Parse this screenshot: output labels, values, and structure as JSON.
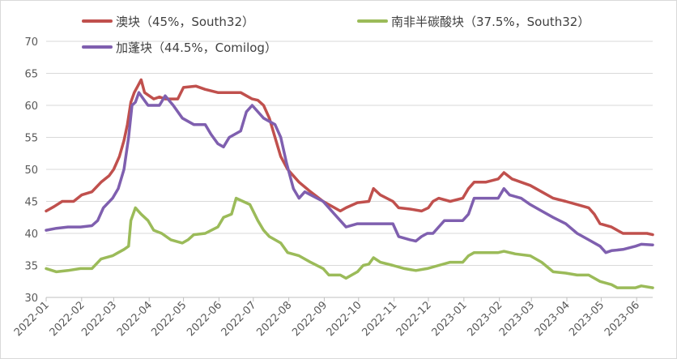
{
  "chart_data": {
    "type": "line",
    "title": "",
    "xlabel": "",
    "ylabel": "",
    "ylim": [
      30,
      70
    ],
    "yticks": [
      30,
      35,
      40,
      45,
      50,
      55,
      60,
      65,
      70
    ],
    "grid": "horizontal",
    "legend_position": "top",
    "x_tick_labels": [
      "2022-01",
      "2022-02",
      "2022-03",
      "2022-04",
      "2022-05",
      "2022-06",
      "2022-07",
      "2022-08",
      "2022-09",
      "2022-10",
      "2022-11",
      "2022-12",
      "2023-01",
      "2023-02",
      "2023-03",
      "2023-04",
      "2023-05",
      "2023-06"
    ],
    "x_range": [
      "2022-01",
      "2023-06-15"
    ],
    "series": [
      {
        "name": "澳块（45%，South32）",
        "color": "#C0504D",
        "points": [
          [
            "2022-01-01",
            43.5
          ],
          [
            "2022-01-08",
            44.2
          ],
          [
            "2022-01-15",
            45.0
          ],
          [
            "2022-01-25",
            45.0
          ],
          [
            "2022-02-01",
            46.0
          ],
          [
            "2022-02-10",
            46.5
          ],
          [
            "2022-02-18",
            48.0
          ],
          [
            "2022-02-25",
            49.0
          ],
          [
            "2022-03-01",
            50.0
          ],
          [
            "2022-03-06",
            52.0
          ],
          [
            "2022-03-10",
            54.5
          ],
          [
            "2022-03-13",
            57.0
          ],
          [
            "2022-03-16",
            60.5
          ],
          [
            "2022-03-19",
            62.0
          ],
          [
            "2022-03-22",
            63.0
          ],
          [
            "2022-03-25",
            64.0
          ],
          [
            "2022-03-28",
            62.0
          ],
          [
            "2022-04-01",
            61.5
          ],
          [
            "2022-04-05",
            61.0
          ],
          [
            "2022-04-10",
            61.3
          ],
          [
            "2022-04-15",
            61.0
          ],
          [
            "2022-04-22",
            61.0
          ],
          [
            "2022-04-26",
            61.0
          ],
          [
            "2022-05-01",
            62.8
          ],
          [
            "2022-05-12",
            63.0
          ],
          [
            "2022-05-20",
            62.5
          ],
          [
            "2022-05-31",
            62.0
          ],
          [
            "2022-06-10",
            62.0
          ],
          [
            "2022-06-20",
            62.0
          ],
          [
            "2022-06-25",
            61.5
          ],
          [
            "2022-06-30",
            61.0
          ],
          [
            "2022-07-05",
            60.8
          ],
          [
            "2022-07-10",
            60.0
          ],
          [
            "2022-07-15",
            58.0
          ],
          [
            "2022-07-20",
            55.0
          ],
          [
            "2022-07-25",
            52.0
          ],
          [
            "2022-07-31",
            50.0
          ],
          [
            "2022-08-05",
            49.0
          ],
          [
            "2022-08-10",
            48.0
          ],
          [
            "2022-08-20",
            46.5
          ],
          [
            "2022-08-31",
            45.0
          ],
          [
            "2022-09-10",
            44.0
          ],
          [
            "2022-09-15",
            43.5
          ],
          [
            "2022-09-20",
            44.0
          ],
          [
            "2022-09-30",
            44.8
          ],
          [
            "2022-10-10",
            45.0
          ],
          [
            "2022-10-14",
            47.0
          ],
          [
            "2022-10-20",
            46.0
          ],
          [
            "2022-10-31",
            45.0
          ],
          [
            "2022-11-05",
            44.0
          ],
          [
            "2022-11-15",
            43.8
          ],
          [
            "2022-11-25",
            43.5
          ],
          [
            "2022-12-01",
            44.0
          ],
          [
            "2022-12-05",
            45.0
          ],
          [
            "2022-12-10",
            45.5
          ],
          [
            "2022-12-20",
            45.0
          ],
          [
            "2022-12-31",
            45.5
          ],
          [
            "2023-01-05",
            47.0
          ],
          [
            "2023-01-10",
            48.0
          ],
          [
            "2023-01-20",
            48.0
          ],
          [
            "2023-01-31",
            48.5
          ],
          [
            "2023-02-05",
            49.5
          ],
          [
            "2023-02-12",
            48.5
          ],
          [
            "2023-02-20",
            48.0
          ],
          [
            "2023-02-28",
            47.5
          ],
          [
            "2023-03-10",
            46.5
          ],
          [
            "2023-03-20",
            45.5
          ],
          [
            "2023-03-31",
            45.0
          ],
          [
            "2023-04-10",
            44.5
          ],
          [
            "2023-04-20",
            44.0
          ],
          [
            "2023-04-25",
            43.0
          ],
          [
            "2023-04-30",
            41.5
          ],
          [
            "2023-05-10",
            41.0
          ],
          [
            "2023-05-15",
            40.5
          ],
          [
            "2023-05-20",
            40.0
          ],
          [
            "2023-05-31",
            40.0
          ],
          [
            "2023-06-10",
            40.0
          ],
          [
            "2023-06-15",
            39.8
          ]
        ]
      },
      {
        "name": "南非半碳酸块（37.5%，South32）",
        "color": "#9BBB59",
        "points": [
          [
            "2022-01-01",
            34.5
          ],
          [
            "2022-01-10",
            34.0
          ],
          [
            "2022-01-20",
            34.2
          ],
          [
            "2022-01-31",
            34.5
          ],
          [
            "2022-02-10",
            34.5
          ],
          [
            "2022-02-18",
            36.0
          ],
          [
            "2022-02-28",
            36.5
          ],
          [
            "2022-03-05",
            37.0
          ],
          [
            "2022-03-10",
            37.5
          ],
          [
            "2022-03-14",
            38.0
          ],
          [
            "2022-03-16",
            42.0
          ],
          [
            "2022-03-20",
            44.0
          ],
          [
            "2022-03-25",
            43.0
          ],
          [
            "2022-03-31",
            42.0
          ],
          [
            "2022-04-05",
            40.5
          ],
          [
            "2022-04-12",
            40.0
          ],
          [
            "2022-04-20",
            39.0
          ],
          [
            "2022-04-30",
            38.5
          ],
          [
            "2022-05-05",
            39.0
          ],
          [
            "2022-05-10",
            39.8
          ],
          [
            "2022-05-20",
            40.0
          ],
          [
            "2022-05-31",
            41.0
          ],
          [
            "2022-06-05",
            42.5
          ],
          [
            "2022-06-12",
            43.0
          ],
          [
            "2022-06-16",
            45.5
          ],
          [
            "2022-06-22",
            45.0
          ],
          [
            "2022-06-28",
            44.5
          ],
          [
            "2022-07-05",
            42.0
          ],
          [
            "2022-07-10",
            40.5
          ],
          [
            "2022-07-15",
            39.5
          ],
          [
            "2022-07-25",
            38.5
          ],
          [
            "2022-07-31",
            37.0
          ],
          [
            "2022-08-10",
            36.5
          ],
          [
            "2022-08-20",
            35.5
          ],
          [
            "2022-08-31",
            34.5
          ],
          [
            "2022-09-05",
            33.5
          ],
          [
            "2022-09-15",
            33.5
          ],
          [
            "2022-09-20",
            33.0
          ],
          [
            "2022-09-30",
            34.0
          ],
          [
            "2022-10-05",
            35.0
          ],
          [
            "2022-10-10",
            35.2
          ],
          [
            "2022-10-14",
            36.2
          ],
          [
            "2022-10-20",
            35.5
          ],
          [
            "2022-10-31",
            35.0
          ],
          [
            "2022-11-10",
            34.5
          ],
          [
            "2022-11-20",
            34.2
          ],
          [
            "2022-11-30",
            34.5
          ],
          [
            "2022-12-10",
            35.0
          ],
          [
            "2022-12-20",
            35.5
          ],
          [
            "2022-12-31",
            35.5
          ],
          [
            "2023-01-05",
            36.5
          ],
          [
            "2023-01-10",
            37.0
          ],
          [
            "2023-01-20",
            37.0
          ],
          [
            "2023-01-31",
            37.0
          ],
          [
            "2023-02-05",
            37.2
          ],
          [
            "2023-02-15",
            36.8
          ],
          [
            "2023-02-28",
            36.5
          ],
          [
            "2023-03-10",
            35.5
          ],
          [
            "2023-03-20",
            34.0
          ],
          [
            "2023-03-31",
            33.8
          ],
          [
            "2023-04-10",
            33.5
          ],
          [
            "2023-04-20",
            33.5
          ],
          [
            "2023-04-30",
            32.5
          ],
          [
            "2023-05-10",
            32.0
          ],
          [
            "2023-05-15",
            31.5
          ],
          [
            "2023-05-31",
            31.5
          ],
          [
            "2023-06-05",
            31.8
          ],
          [
            "2023-06-15",
            31.5
          ]
        ]
      },
      {
        "name": "加蓬块（44.5%，Comilog）",
        "color": "#7F5FAF",
        "points": [
          [
            "2022-01-01",
            40.5
          ],
          [
            "2022-01-10",
            40.8
          ],
          [
            "2022-01-20",
            41.0
          ],
          [
            "2022-01-31",
            41.0
          ],
          [
            "2022-02-10",
            41.2
          ],
          [
            "2022-02-15",
            42.0
          ],
          [
            "2022-02-20",
            44.0
          ],
          [
            "2022-02-28",
            45.5
          ],
          [
            "2022-03-05",
            47.0
          ],
          [
            "2022-03-10",
            50.0
          ],
          [
            "2022-03-14",
            55.0
          ],
          [
            "2022-03-17",
            60.0
          ],
          [
            "2022-03-20",
            60.5
          ],
          [
            "2022-03-23",
            62.0
          ],
          [
            "2022-03-27",
            61.0
          ],
          [
            "2022-03-31",
            60.0
          ],
          [
            "2022-04-10",
            60.0
          ],
          [
            "2022-04-15",
            61.5
          ],
          [
            "2022-04-22",
            60.0
          ],
          [
            "2022-04-30",
            58.0
          ],
          [
            "2022-05-10",
            57.0
          ],
          [
            "2022-05-20",
            57.0
          ],
          [
            "2022-05-25",
            55.5
          ],
          [
            "2022-05-31",
            54.0
          ],
          [
            "2022-06-05",
            53.5
          ],
          [
            "2022-06-10",
            55.0
          ],
          [
            "2022-06-20",
            56.0
          ],
          [
            "2022-06-25",
            59.0
          ],
          [
            "2022-06-30",
            60.0
          ],
          [
            "2022-07-05",
            59.0
          ],
          [
            "2022-07-10",
            58.0
          ],
          [
            "2022-07-20",
            57.0
          ],
          [
            "2022-07-25",
            55.0
          ],
          [
            "2022-07-30",
            51.0
          ],
          [
            "2022-08-05",
            47.0
          ],
          [
            "2022-08-10",
            45.5
          ],
          [
            "2022-08-15",
            46.5
          ],
          [
            "2022-08-31",
            45.0
          ],
          [
            "2022-09-10",
            43.0
          ],
          [
            "2022-09-20",
            41.0
          ],
          [
            "2022-09-30",
            41.5
          ],
          [
            "2022-10-10",
            41.5
          ],
          [
            "2022-10-31",
            41.5
          ],
          [
            "2022-11-05",
            39.5
          ],
          [
            "2022-11-15",
            39.0
          ],
          [
            "2022-11-20",
            38.8
          ],
          [
            "2022-11-25",
            39.5
          ],
          [
            "2022-11-30",
            40.0
          ],
          [
            "2022-12-05",
            40.0
          ],
          [
            "2022-12-10",
            41.0
          ],
          [
            "2022-12-15",
            42.0
          ],
          [
            "2022-12-31",
            42.0
          ],
          [
            "2023-01-05",
            43.0
          ],
          [
            "2023-01-10",
            45.5
          ],
          [
            "2023-01-31",
            45.5
          ],
          [
            "2023-02-05",
            47.0
          ],
          [
            "2023-02-10",
            46.0
          ],
          [
            "2023-02-20",
            45.5
          ],
          [
            "2023-02-28",
            44.5
          ],
          [
            "2023-03-10",
            43.5
          ],
          [
            "2023-03-20",
            42.5
          ],
          [
            "2023-03-31",
            41.5
          ],
          [
            "2023-04-10",
            40.0
          ],
          [
            "2023-04-20",
            39.0
          ],
          [
            "2023-04-30",
            38.0
          ],
          [
            "2023-05-05",
            37.0
          ],
          [
            "2023-05-10",
            37.3
          ],
          [
            "2023-05-20",
            37.5
          ],
          [
            "2023-05-31",
            38.0
          ],
          [
            "2023-06-05",
            38.3
          ],
          [
            "2023-06-15",
            38.2
          ]
        ]
      }
    ]
  }
}
